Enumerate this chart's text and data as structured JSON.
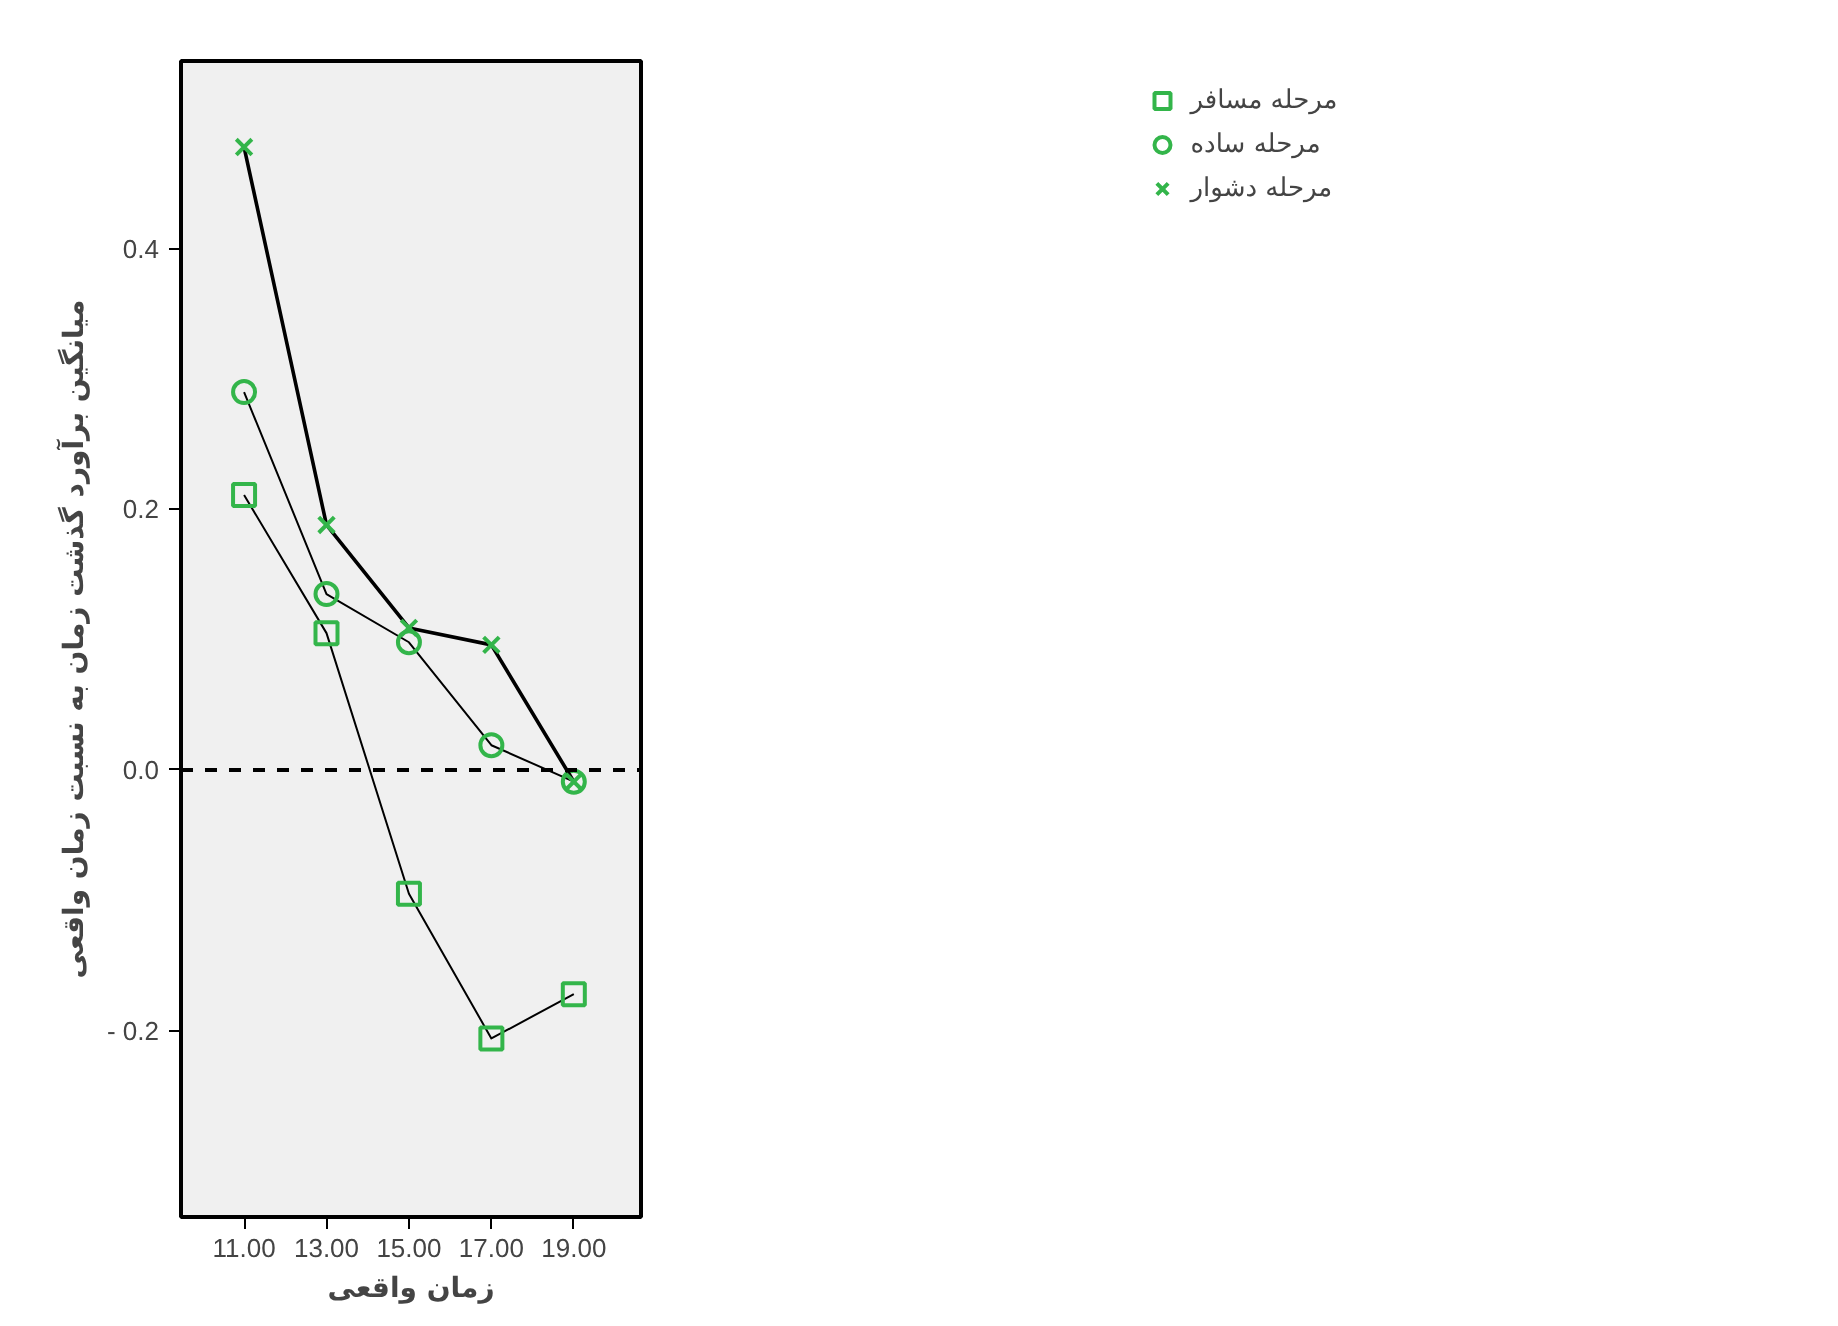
{
  "chart_data": {
    "type": "line",
    "xlabel": "زمان واقعی",
    "ylabel": "میانگین برآورد گذشت زمان به نسبت زمان واقعی",
    "x": [
      11,
      13,
      15,
      17,
      19
    ],
    "series": [
      {
        "name": "مرحله مسافر",
        "color": "#33b54a",
        "marker": "square",
        "values": [
          0.211,
          0.105,
          -0.095,
          -0.206,
          -0.172
        ]
      },
      {
        "name": "مرحله ساده",
        "color": "#33b54a",
        "marker": "circle",
        "values": [
          0.29,
          0.135,
          0.098,
          0.019,
          -0.009
        ]
      },
      {
        "name": "مرحله دشوار",
        "color": "#33b54a",
        "marker": "cross",
        "values": [
          0.478,
          0.188,
          0.109,
          0.096,
          -0.009
        ]
      }
    ],
    "xlim": [
      9.47,
      20.63
    ],
    "ylim": [
      -0.343,
      0.544
    ],
    "xticks": [
      {
        "value": 11,
        "label": "11.00"
      },
      {
        "value": 13,
        "label": "13.00"
      },
      {
        "value": 15,
        "label": "15.00"
      },
      {
        "value": 17,
        "label": "17.00"
      },
      {
        "value": 19,
        "label": "19.00"
      }
    ],
    "yticks": [
      {
        "value": -0.2,
        "label": "- 0.2"
      },
      {
        "value": 0,
        "label": "0.0"
      },
      {
        "value": 0.2,
        "label": "0.2"
      },
      {
        "value": 0.4,
        "label": "0.4"
      }
    ],
    "ref_lines": [
      {
        "axis": "y",
        "value": 0,
        "line_style": "dashed"
      }
    ],
    "grid": false,
    "legend": "top right",
    "line_style": "solid"
  }
}
